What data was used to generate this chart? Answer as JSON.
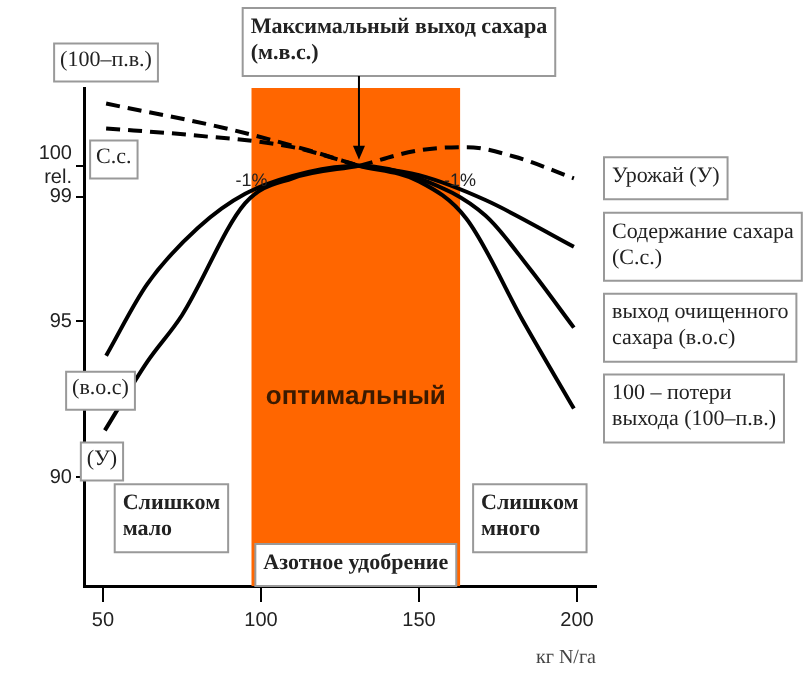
{
  "chart_data": {
    "type": "line",
    "xlabel": "кг N/га",
    "xlim": [
      44,
      206
    ],
    "xticks": [
      50,
      100,
      150,
      200
    ],
    "ylim": [
      86.5,
      102.5
    ],
    "yticks": [
      90,
      95,
      99,
      {
        "value": 100,
        "label": "100 rel."
      }
    ],
    "grid": false,
    "legend": false,
    "marker": "none",
    "series": [
      {
        "color": "#000000",
        "line_style": "dashed",
        "x": [
          51,
          89,
          115,
          131
        ],
        "values": [
          102,
          101.2,
          100.5,
          100
        ]
      },
      {
        "name": "100 – потери выхода (100–п.в.)",
        "color": "#000000",
        "line_style": "solid",
        "x": [
          131,
          150,
          165,
          183,
          199
        ],
        "values": [
          100,
          99.5,
          98.3,
          95,
          92.2
        ]
      },
      {
        "color": "#000000",
        "line_style": "dashed",
        "x": [
          51,
          76.5,
          110,
          131
        ],
        "values": [
          101.2,
          101,
          100.6,
          100
        ]
      },
      {
        "name": "Содержание сахара (С.с.)",
        "color": "#000000",
        "line_style": "solid",
        "x": [
          131,
          150,
          171,
          199
        ],
        "values": [
          100,
          99.7,
          98.9,
          97.4
        ]
      },
      {
        "color": "#000000",
        "line_style": "solid",
        "x": [
          50.6,
          64,
          75,
          95,
          110,
          131
        ],
        "values": [
          91.5,
          93.7,
          95.2,
          98.8,
          99.6,
          100
        ]
      },
      {
        "name": "Урожай (У)",
        "color": "#000000",
        "line_style": "dashed",
        "x": [
          131,
          150,
          165,
          180,
          199
        ],
        "values": [
          100,
          100.5,
          100.6,
          100.3,
          99.6
        ]
      },
      {
        "name": "выход очищенного сахара (в.о.с)",
        "color": "#000000",
        "line_style": "solid",
        "x": [
          51,
          64,
          80,
          95,
          115,
          131,
          150,
          171,
          185,
          199
        ],
        "values": [
          93.9,
          96.2,
          98,
          99.1,
          99.8,
          100,
          99.6,
          98.4,
          96.7,
          94.8
        ]
      }
    ],
    "bands": [
      {
        "axis": "x",
        "from": 97,
        "to": 163,
        "label": "оптимальный",
        "color": "#ff6600"
      }
    ],
    "annotations": [
      {
        "text": "Максимальный выход сахара (м.в.с.)",
        "x": 131,
        "y": 100
      },
      {
        "text": "-1%",
        "x": 97,
        "y": 99.5
      },
      {
        "text": "-1%",
        "x": 163,
        "y": 99.5
      },
      {
        "text": "(100–п.в.)",
        "x": 51,
        "y": 102
      },
      {
        "text": "С.с.",
        "x": 51,
        "y": 101.2
      },
      {
        "text": "(в.о.с)",
        "x": 51,
        "y": 93.9
      },
      {
        "text": "(У)",
        "x": 50.6,
        "y": 91.5
      },
      "Слишком мало",
      "Слишком много",
      "Азотное удобрение"
    ]
  }
}
